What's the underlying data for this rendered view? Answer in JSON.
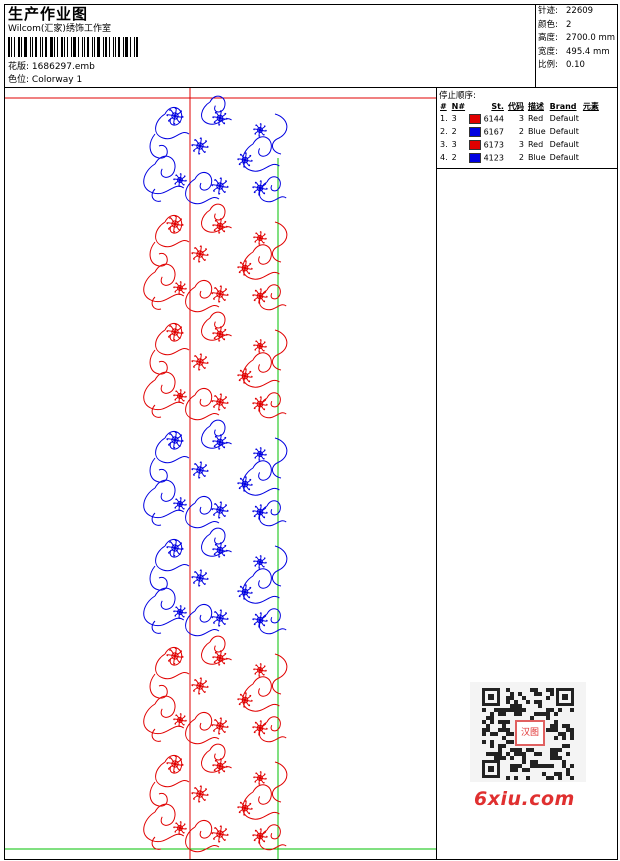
{
  "header": {
    "title": "生产作业图",
    "studio": "Wilcom(汇家)绣饰工作室",
    "design_label": "花版:",
    "design_file": "1686297.emb",
    "colorway_label": "色位:",
    "colorway": "Colorway 1"
  },
  "stats": [
    {
      "label": "针迹:",
      "value": "22609"
    },
    {
      "label": "颜色:",
      "value": "2"
    },
    {
      "label": "高度:",
      "value": "2700.0 mm"
    },
    {
      "label": "宽度:",
      "value": "495.4 mm"
    },
    {
      "label": "比例:",
      "value": "0.10"
    }
  ],
  "sequence": {
    "title": "停止顺序:",
    "headers": [
      "#",
      "N#",
      "St.",
      "代码",
      "描述",
      "Brand",
      "元素"
    ],
    "rows": [
      {
        "num": "1.",
        "needle": "3",
        "stitches": "6144",
        "code": "3",
        "desc": "Red",
        "brand": "Default",
        "color": "#e00000"
      },
      {
        "num": "2.",
        "needle": "2",
        "stitches": "6167",
        "code": "2",
        "desc": "Blue",
        "brand": "Default",
        "color": "#0000e0"
      },
      {
        "num": "3.",
        "needle": "3",
        "stitches": "6173",
        "code": "3",
        "desc": "Red",
        "brand": "Default",
        "color": "#e00000"
      },
      {
        "num": "4.",
        "needle": "2",
        "stitches": "4123",
        "code": "2",
        "desc": "Blue",
        "brand": "Default",
        "color": "#0000e0"
      }
    ]
  },
  "design": {
    "red": "#e00000",
    "blue": "#0000e0",
    "guide_green": "#00c000",
    "bands": [
      "blue",
      "red",
      "red",
      "blue",
      "blue",
      "red",
      "red"
    ]
  },
  "watermark": {
    "text": "6xiu.com",
    "qr_caption": "汉图"
  }
}
